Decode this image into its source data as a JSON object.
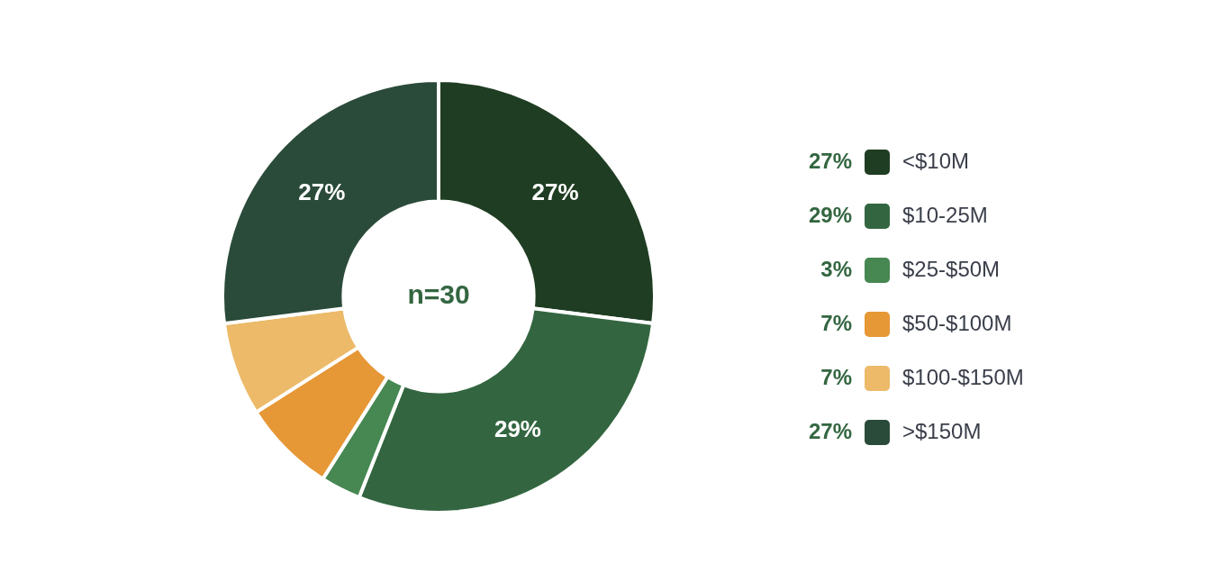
{
  "chart_data": {
    "type": "donut",
    "categories": [
      "<$10M",
      "$10-25M",
      "$25-$50M",
      "$50-$100M",
      "$100-$150M",
      ">$150M"
    ],
    "values": [
      27,
      29,
      3,
      7,
      7,
      27
    ],
    "colors": [
      "#1f3d22",
      "#336640",
      "#468752",
      "#e69736",
      "#ecba69",
      "#2b4b3a"
    ],
    "value_labels": [
      "27%",
      "29%",
      "3%",
      "7%",
      "7%",
      "27%"
    ],
    "annotations": [
      "n=30"
    ],
    "legend": "right"
  }
}
